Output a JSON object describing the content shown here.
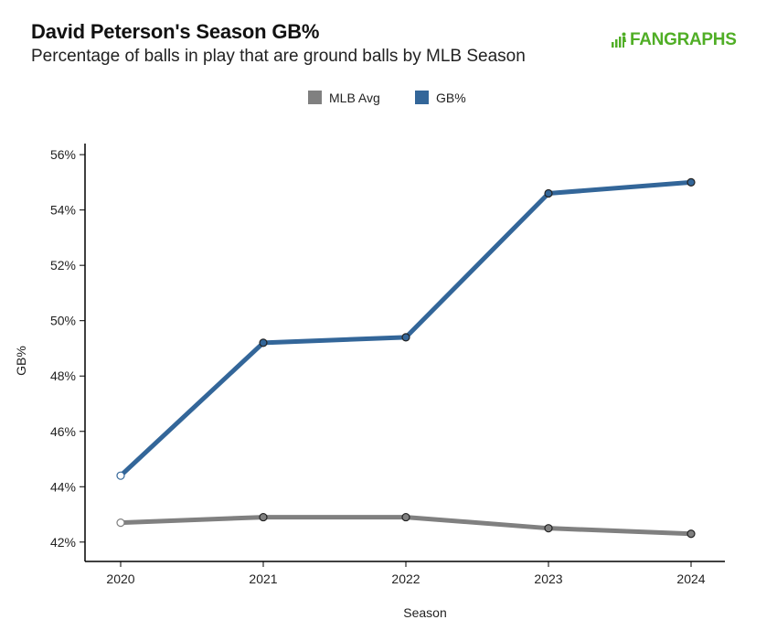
{
  "title": "David Peterson's Season GB%",
  "subtitle": "Percentage of balls in play that are ground balls by MLB Season",
  "logo_text": "FANGRAPHS",
  "colors": {
    "gb": "#336699",
    "mlb": "#808080",
    "logo": "#50ae26"
  },
  "chart_data": {
    "type": "line",
    "xlabel": "Season",
    "ylabel": "GB%",
    "ylim": [
      41.3,
      56.4
    ],
    "yticks": [
      42,
      44,
      46,
      48,
      50,
      52,
      54,
      56
    ],
    "ytick_labels": [
      "42%",
      "44%",
      "46%",
      "48%",
      "50%",
      "52%",
      "54%",
      "56%"
    ],
    "x": [
      "2020",
      "2021",
      "2022",
      "2023",
      "2024"
    ],
    "legend_position": "top-center",
    "series": [
      {
        "name": "MLB Avg",
        "color": "#808080",
        "values": [
          42.7,
          42.9,
          42.9,
          42.5,
          42.3
        ]
      },
      {
        "name": "GB%",
        "color": "#336699",
        "values": [
          44.4,
          49.2,
          49.4,
          54.6,
          55.0
        ]
      }
    ]
  }
}
